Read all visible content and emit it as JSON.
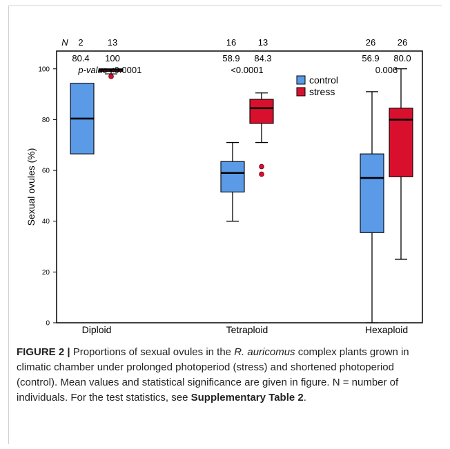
{
  "chart_data": {
    "type": "boxplot",
    "ylabel": "Sexual ovules (%)",
    "ylim": [
      0,
      107
    ],
    "yticks": [
      0,
      20,
      40,
      60,
      80,
      100
    ],
    "categories": [
      "Diploid",
      "Tetraploid",
      "Hexaploid"
    ],
    "legend": {
      "position": "top-right",
      "entries": [
        {
          "name": "control",
          "color": "#5a9ae6"
        },
        {
          "name": "stress",
          "color": "#d8102e"
        }
      ]
    },
    "series": [
      {
        "name": "control",
        "color": "#5a9ae6",
        "boxes": [
          {
            "category": "Diploid",
            "whisker_low": 66.5,
            "q1": 66.5,
            "median": 80.4,
            "q3": 94.3,
            "whisker_high": 94.3,
            "outliers": []
          },
          {
            "category": "Tetraploid",
            "whisker_low": 40,
            "q1": 51.5,
            "median": 59,
            "q3": 63.5,
            "whisker_high": 71,
            "outliers": []
          },
          {
            "category": "Hexaploid",
            "whisker_low": 0,
            "q1": 35.5,
            "median": 57,
            "q3": 66.5,
            "whisker_high": 91,
            "outliers": []
          }
        ]
      },
      {
        "name": "stress",
        "color": "#d8102e",
        "boxes": [
          {
            "category": "Diploid",
            "whisker_low": 98,
            "q1": 99,
            "median": 99.6,
            "q3": 100,
            "whisker_high": 100,
            "outliers": [
              97
            ]
          },
          {
            "category": "Tetraploid",
            "whisker_low": 71,
            "q1": 78.5,
            "median": 84.5,
            "q3": 88,
            "whisker_high": 90.5,
            "outliers": [
              61.5,
              58.5
            ]
          },
          {
            "category": "Hexaploid",
            "whisker_low": 25,
            "q1": 57.5,
            "median": 80,
            "q3": 84.5,
            "whisker_high": 100,
            "outliers": []
          }
        ]
      }
    ],
    "annotations": {
      "n_label": "N",
      "pvalue_label": "p-value",
      "groups": [
        {
          "category": "Diploid",
          "n_control": "2",
          "n_stress": "13",
          "mean_control": "80.4",
          "mean_stress": "100",
          "pvalue": "<0.0001"
        },
        {
          "category": "Tetraploid",
          "n_control": "16",
          "n_stress": "13",
          "mean_control": "58.9",
          "mean_stress": "84.3",
          "pvalue": "<0.0001"
        },
        {
          "category": "Hexaploid",
          "n_control": "26",
          "n_stress": "26",
          "mean_control": "56.9",
          "mean_stress": "80.0",
          "pvalue": "0.006"
        }
      ]
    }
  },
  "caption": {
    "figure_label": "FIGURE 2 |",
    "part1": " Proportions of sexual ovules in the ",
    "species": "R. auricomus",
    "part2": " complex plants grown in climatic chamber under prolonged photoperiod (stress) and shortened photoperiod (control). Mean values and statistical significance are given in figure. N = number of individuals. For the test statistics, see ",
    "reference": "Supplementary Table 2",
    "end": "."
  }
}
